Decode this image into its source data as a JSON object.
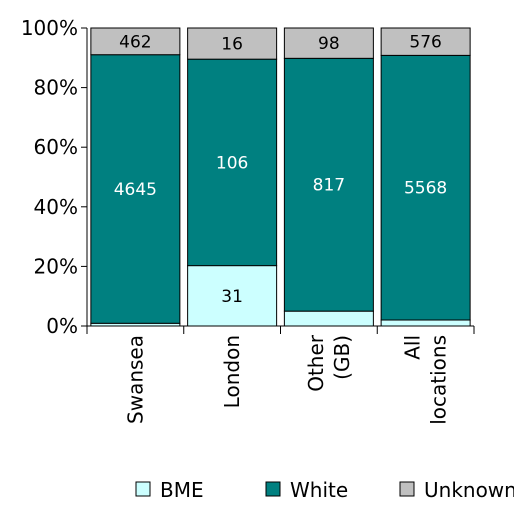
{
  "chart_data": {
    "type": "bar",
    "stacked": "percent",
    "categories": [
      "Swansea",
      "London",
      "Other (GB)",
      "All locations"
    ],
    "category_lines": [
      [
        "Swansea"
      ],
      [
        "London"
      ],
      [
        "Other",
        "(GB)"
      ],
      [
        "All",
        "locations"
      ]
    ],
    "series": [
      {
        "name": "BME",
        "color": "#ccffff",
        "values": [
          47,
          31,
          48,
          126
        ],
        "labels": [
          "",
          "31",
          "",
          ""
        ]
      },
      {
        "name": "White",
        "color": "#008080",
        "values": [
          4645,
          106,
          817,
          5568
        ],
        "labels": [
          "4645",
          "106",
          "817",
          "5568"
        ]
      },
      {
        "name": "Unknown",
        "color": "#c0c0c0",
        "values": [
          462,
          16,
          98,
          576
        ],
        "labels": [
          "462",
          "16",
          "98",
          "576"
        ]
      }
    ],
    "yticks": [
      "0%",
      "20%",
      "40%",
      "60%",
      "80%",
      "100%"
    ],
    "ylim": [
      0,
      100
    ],
    "legend_position": "bottom",
    "grid": false
  }
}
